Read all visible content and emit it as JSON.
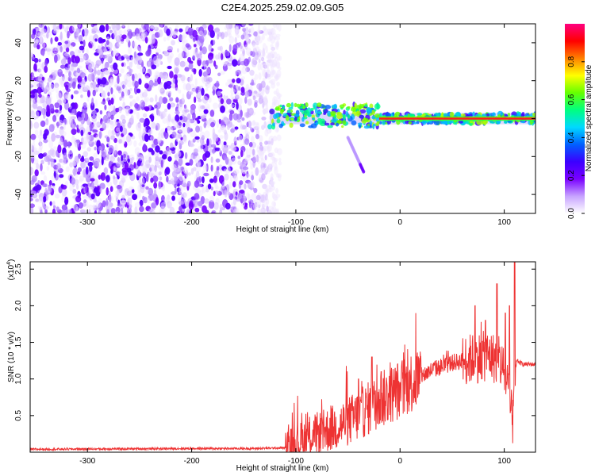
{
  "figure": {
    "title": "C2E4.2025.259.02.09.G05"
  },
  "chart_data": [
    {
      "type": "heatmap",
      "name": "spectrogram",
      "xlabel": "Height of straight line (km)",
      "ylabel": "Frequency (Hz)",
      "xlim": [
        -355,
        130
      ],
      "ylim": [
        -50,
        50
      ],
      "xticks": [
        -300,
        -200,
        -100,
        0,
        100
      ],
      "xtick_labels": [
        "-300",
        "-200",
        "-100",
        "0",
        "100"
      ],
      "yticks": [
        40,
        20,
        0,
        -20,
        -40
      ],
      "ytick_labels": [
        "40",
        "20",
        "0",
        "-20",
        "-40"
      ],
      "noise_region_km": [
        -355,
        -115
      ],
      "signal_track_km": [
        -125,
        130
      ],
      "signal_frequency_hz": 0,
      "secondary_track": {
        "start_km": -50,
        "end_km": -35,
        "start_hz": -10,
        "end_hz": -28
      },
      "colorbar": {
        "label": "Normalized spectral amplitude",
        "ticks": [
          0.0,
          0.2,
          0.4,
          0.6,
          0.8
        ],
        "tick_labels": [
          "0.0",
          "0.2",
          "0.4",
          "0.6",
          "0.8"
        ],
        "colors": [
          "#ffffff",
          "#c7a3ff",
          "#7a00ff",
          "#3b00ff",
          "#0060ff",
          "#00d9ff",
          "#00ff80",
          "#66ff00",
          "#ffff00",
          "#ff8000",
          "#ff0000",
          "#ff0080"
        ]
      }
    },
    {
      "type": "line",
      "name": "snr",
      "xlabel": "Height of straight line (km)",
      "ylabel": "SNR (10 * v/v)",
      "scale_label": "(x10",
      "scale_exponent": "4",
      "xlim": [
        -355,
        130
      ],
      "ylim": [
        0,
        2.6
      ],
      "xticks": [
        -300,
        -200,
        -100,
        0,
        100
      ],
      "xtick_labels": [
        "-300",
        "-200",
        "-100",
        "0",
        "100"
      ],
      "yticks": [
        0.5,
        1.0,
        1.5,
        2.0,
        2.5
      ],
      "ytick_labels": [
        "0.5",
        "1.0",
        "1.5",
        "2.0",
        "2.5"
      ],
      "color": "#ee3333",
      "envelope": {
        "x_km": [
          -355,
          -200,
          -140,
          -110,
          -95,
          -80,
          -60,
          -40,
          -20,
          -5,
          10,
          30,
          50,
          70,
          85,
          95,
          100,
          105,
          108,
          112,
          118,
          130
        ],
        "y": [
          0.04,
          0.05,
          0.05,
          0.06,
          0.15,
          0.25,
          0.35,
          0.5,
          0.7,
          0.82,
          0.95,
          1.12,
          1.22,
          1.28,
          1.32,
          1.25,
          1.1,
          0.7,
          0.4,
          1.25,
          1.2,
          1.2
        ]
      },
      "spikes": [
        {
          "x_km": -40,
          "y": 1.0
        },
        {
          "x_km": -27,
          "y": 1.3
        },
        {
          "x_km": -18,
          "y": 1.1
        },
        {
          "x_km": 0,
          "y": 0.95
        },
        {
          "x_km": 72,
          "y": 2.0
        },
        {
          "x_km": 82,
          "y": 1.8
        },
        {
          "x_km": 93,
          "y": 2.3
        },
        {
          "x_km": 101,
          "y": 1.9
        },
        {
          "x_km": 105,
          "y": 2.0
        },
        {
          "x_km": 110,
          "y": 2.6
        }
      ]
    }
  ]
}
